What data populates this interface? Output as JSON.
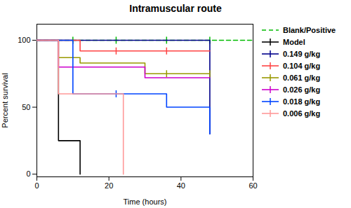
{
  "chart_data": {
    "type": "line",
    "title": "Intramuscular route",
    "x_label": "Time (hours)",
    "y_label": "Percent survival",
    "xlim": [
      0,
      60
    ],
    "ylim": [
      -2,
      112
    ],
    "xticks": [
      0,
      20,
      40,
      60
    ],
    "yticks": [
      0,
      50,
      100
    ],
    "grid": false,
    "legend": "right",
    "series": [
      {
        "name": "Blank/Positive",
        "color": "#00BB00",
        "line_style": "dashed",
        "x": [
          0,
          60
        ],
        "values": [
          100,
          100
        ],
        "censor_x": [
          10,
          22,
          36,
          48
        ],
        "censor_y": [
          100,
          100,
          100,
          100
        ]
      },
      {
        "name": "Model",
        "color": "#000000",
        "line_style": "solid",
        "marker": "vline",
        "x": [
          0,
          6,
          6,
          12,
          12
        ],
        "values": [
          100,
          100,
          25,
          25,
          0
        ],
        "censor_x": [],
        "censor_y": []
      },
      {
        "name": "0.149 g/kg",
        "color": "#00008B",
        "line_style": "solid",
        "marker": "vline",
        "x": [
          0,
          48,
          48
        ],
        "values": [
          100,
          100,
          30
        ],
        "censor_x": [],
        "censor_y": []
      },
      {
        "name": "0.104 g/kg",
        "color": "#FF4444",
        "line_style": "solid",
        "marker": "vline",
        "x": [
          0,
          12,
          12,
          48
        ],
        "values": [
          100,
          100,
          92,
          92
        ],
        "censor_x": [
          22,
          36
        ],
        "censor_y": [
          92,
          92
        ]
      },
      {
        "name": "0.061 g/kg",
        "color": "#999900",
        "line_style": "solid",
        "marker": "vline",
        "x": [
          0,
          6,
          6,
          12,
          12,
          30,
          30,
          48
        ],
        "values": [
          100,
          100,
          87,
          87,
          83,
          83,
          75,
          75
        ],
        "censor_x": [
          36,
          48
        ],
        "censor_y": [
          75,
          75
        ]
      },
      {
        "name": "0.026 g/kg",
        "color": "#CC00CC",
        "line_style": "solid",
        "marker": "vline",
        "x": [
          0,
          6,
          6,
          30,
          30,
          48
        ],
        "values": [
          100,
          100,
          80,
          80,
          72,
          72
        ],
        "censor_x": [],
        "censor_y": []
      },
      {
        "name": "0.018 g/kg",
        "color": "#0044FF",
        "line_style": "solid",
        "marker": "vline",
        "x": [
          0,
          10,
          10,
          36,
          36,
          48,
          48
        ],
        "values": [
          100,
          100,
          60,
          60,
          50,
          50,
          30
        ],
        "censor_x": [
          22
        ],
        "censor_y": [
          60
        ]
      },
      {
        "name": "0.006 g/kg",
        "color": "#FF9999",
        "line_style": "solid",
        "marker": "vline",
        "x": [
          0,
          6,
          6,
          24,
          24
        ],
        "values": [
          100,
          100,
          60,
          60,
          0
        ],
        "censor_x": [],
        "censor_y": []
      }
    ]
  }
}
